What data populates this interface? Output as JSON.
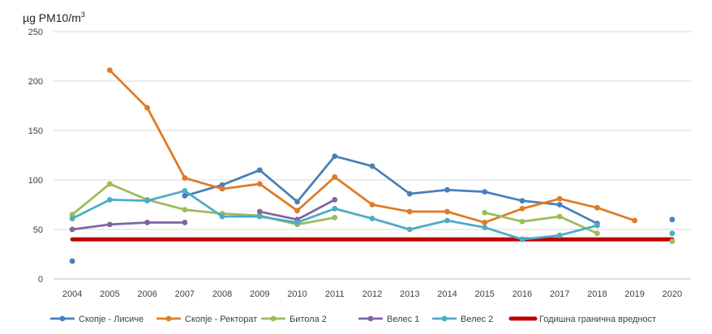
{
  "chart_data": {
    "type": "line",
    "y_unit": {
      "prefix": "µg PM10/m",
      "sup": "3"
    },
    "categories": [
      "2004",
      "2005",
      "2006",
      "2007",
      "2008",
      "2009",
      "2010",
      "2011",
      "2012",
      "2013",
      "2014",
      "2015",
      "2016",
      "2017",
      "2018",
      "2019",
      "2020"
    ],
    "ylim": [
      0,
      250
    ],
    "yticks": [
      0,
      50,
      100,
      150,
      200,
      250
    ],
    "grid": "horizontal",
    "legend_position": "bottom",
    "series": [
      {
        "name": "Скопје - Лисиче",
        "color": "#4A7EBB",
        "values": [
          18,
          null,
          null,
          84,
          95,
          110,
          78,
          124,
          114,
          86,
          90,
          88,
          79,
          75,
          56,
          null,
          60
        ]
      },
      {
        "name": "Скопје - Ректорат",
        "color": "#E07A24",
        "values": [
          null,
          211,
          173,
          102,
          91,
          96,
          69,
          103,
          75,
          68,
          68,
          57,
          71,
          81,
          72,
          59,
          null
        ]
      },
      {
        "name": "Битола 2",
        "color": "#9BBB59",
        "values": [
          65,
          96,
          80,
          70,
          66,
          64,
          55,
          62,
          null,
          null,
          null,
          67,
          58,
          63,
          46,
          null,
          38
        ]
      },
      {
        "name": "Велес  1",
        "color": "#8064A2",
        "values": [
          50,
          55,
          57,
          57,
          null,
          68,
          60,
          80,
          null,
          null,
          null,
          null,
          40,
          null,
          null,
          null,
          null
        ]
      },
      {
        "name": "Велес  2",
        "color": "#4BACC6",
        "values": [
          61,
          80,
          79,
          89,
          63,
          63,
          57,
          71,
          61,
          50,
          59,
          52,
          40,
          44,
          54,
          null,
          46
        ]
      }
    ],
    "limit": {
      "name": "Годишна гранична вредност",
      "value": 40,
      "color": "#C00000"
    }
  }
}
